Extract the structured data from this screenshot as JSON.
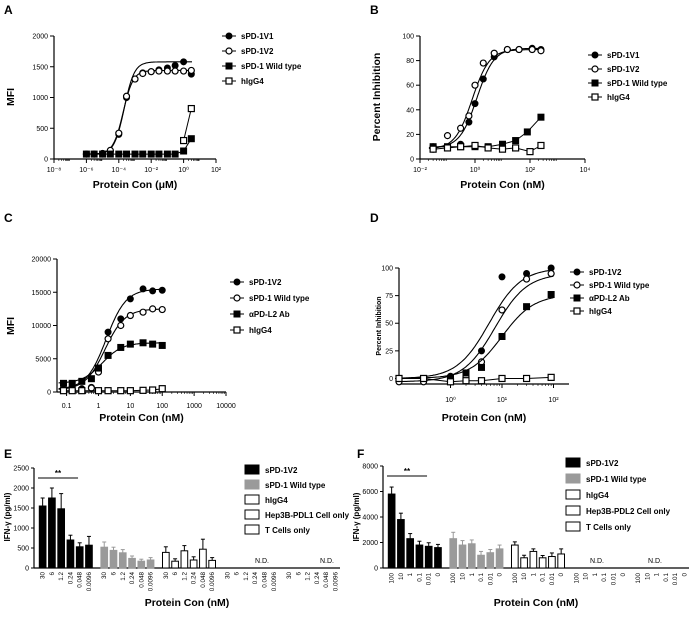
{
  "panels": {
    "A": {
      "letter": "A"
    },
    "B": {
      "letter": "B"
    },
    "C": {
      "letter": "C"
    },
    "D": {
      "letter": "D"
    },
    "E": {
      "letter": "E"
    },
    "F": {
      "letter": "F"
    }
  },
  "chart_data": [
    {
      "id": "A",
      "type": "scatter",
      "xlabel": "Protein Con (μM)",
      "ylabel": "MFI",
      "xscale": "log",
      "xlim": [
        1e-08,
        100
      ],
      "ylim": [
        0,
        2000
      ],
      "xtick_labels": [
        "10⁻⁸",
        "10⁻⁶",
        "10⁻⁴",
        "10⁻²",
        "10⁰",
        "10²"
      ],
      "xticks": [
        1e-08,
        1e-06,
        0.0001,
        0.01,
        1,
        100
      ],
      "yticks": [
        0,
        500,
        1000,
        1500,
        2000
      ],
      "ytick_labels": [
        "0",
        "500",
        "1000",
        "1500",
        "2000"
      ],
      "legend_position": "right",
      "series": [
        {
          "name": "sPD-1V1",
          "marker": "filled-circle",
          "fit": true,
          "x": [
            1e-06,
            3e-06,
            1e-05,
            3e-05,
            0.0001,
            0.0003,
            0.001,
            0.003,
            0.01,
            0.03,
            0.1,
            0.3,
            1,
            3
          ],
          "y": [
            80,
            80,
            80,
            130,
            400,
            1000,
            1300,
            1400,
            1420,
            1450,
            1480,
            1520,
            1580,
            1380
          ]
        },
        {
          "name": "sPD-1V2",
          "marker": "open-circle",
          "fit": true,
          "x": [
            1e-06,
            3e-06,
            1e-05,
            3e-05,
            0.0001,
            0.0003,
            0.001,
            0.003,
            0.01,
            0.03,
            0.1,
            0.3,
            1,
            3
          ],
          "y": [
            80,
            80,
            90,
            140,
            420,
            1020,
            1300,
            1390,
            1420,
            1430,
            1430,
            1430,
            1430,
            1440
          ]
        },
        {
          "name": "sPD-1 Wild type",
          "marker": "filled-square",
          "fit": false,
          "x": [
            1e-06,
            3e-06,
            1e-05,
            3e-05,
            0.0001,
            0.0003,
            0.001,
            0.003,
            0.01,
            0.03,
            0.1,
            0.3,
            1,
            3
          ],
          "y": [
            80,
            80,
            80,
            80,
            80,
            80,
            80,
            80,
            80,
            80,
            80,
            80,
            130,
            330
          ]
        },
        {
          "name": "hIgG4",
          "marker": "open-square",
          "fit": false,
          "x": [
            1,
            3
          ],
          "y": [
            300,
            820
          ]
        }
      ]
    },
    {
      "id": "B",
      "type": "scatter",
      "xlabel": "Protein Con (nM)",
      "ylabel": "Percent Inhibition",
      "xscale": "log",
      "xlim": [
        0.01,
        10000
      ],
      "ylim": [
        0,
        100
      ],
      "xticks": [
        0.01,
        1,
        100,
        10000
      ],
      "xtick_labels": [
        "10⁻²",
        "10⁰",
        "10²",
        "10⁴"
      ],
      "yticks": [
        0,
        20,
        40,
        60,
        80,
        100
      ],
      "ytick_labels": [
        "0",
        "20",
        "40",
        "60",
        "80",
        "100"
      ],
      "legend_position": "right",
      "series": [
        {
          "name": "sPD-1V1",
          "marker": "filled-circle",
          "fit": true,
          "x": [
            0.03,
            0.1,
            0.3,
            0.6,
            1,
            2,
            5,
            15,
            40,
            120,
            250
          ],
          "y": [
            10,
            9,
            12,
            30,
            45,
            65,
            83,
            89,
            89,
            90,
            89
          ]
        },
        {
          "name": "sPD-1V2",
          "marker": "open-circle",
          "fit": true,
          "x": [
            0.03,
            0.1,
            0.3,
            0.6,
            1,
            2,
            5,
            15,
            40,
            120,
            250
          ],
          "y": [
            8,
            19,
            25,
            35,
            60,
            78,
            86,
            89,
            89,
            89,
            88
          ]
        },
        {
          "name": "sPD-1 Wild type",
          "marker": "filled-square",
          "fit": false,
          "x": [
            0.03,
            0.1,
            0.3,
            1,
            3,
            10,
            30,
            80,
            250
          ],
          "y": [
            10,
            10,
            10,
            10,
            10,
            12,
            15,
            22,
            34
          ]
        },
        {
          "name": "hIgG4",
          "marker": "open-square",
          "fit": false,
          "x": [
            0.03,
            0.1,
            0.3,
            1,
            3,
            10,
            30,
            100,
            250
          ],
          "y": [
            8,
            9,
            10,
            11,
            9,
            8,
            9,
            6,
            11
          ]
        }
      ]
    },
    {
      "id": "C",
      "type": "scatter",
      "xlabel": "Protein Con (nM)",
      "ylabel": "MFI",
      "xscale": "log",
      "xlim": [
        0.05,
        10000
      ],
      "ylim": [
        0,
        20000
      ],
      "xticks": [
        0.1,
        1,
        10,
        100,
        1000,
        10000
      ],
      "xtick_labels": [
        "0.1",
        "1",
        "10",
        "100",
        "1000",
        "10000"
      ],
      "yticks": [
        0,
        5000,
        10000,
        15000,
        20000
      ],
      "ytick_labels": [
        "0",
        "5000",
        "10000",
        "15000",
        "20000"
      ],
      "legend_position": "right",
      "series": [
        {
          "name": "sPD-1V2",
          "marker": "filled-circle",
          "fit": true,
          "x": [
            0.08,
            0.15,
            0.3,
            0.6,
            1,
            2,
            5,
            10,
            25,
            50,
            100
          ],
          "y": [
            400,
            400,
            500,
            700,
            3600,
            9000,
            11000,
            14000,
            15500,
            15200,
            15300
          ]
        },
        {
          "name": "sPD-1 Wild type",
          "marker": "open-circle",
          "fit": true,
          "x": [
            0.08,
            0.15,
            0.3,
            0.6,
            1,
            2,
            5,
            10,
            25,
            50,
            100
          ],
          "y": [
            300,
            300,
            300,
            600,
            3000,
            8000,
            10000,
            11500,
            12000,
            12500,
            12400
          ]
        },
        {
          "name": "αPD-L2 Ab",
          "marker": "filled-square",
          "fit": true,
          "x": [
            0.08,
            0.15,
            0.3,
            0.6,
            1,
            2,
            5,
            10,
            25,
            50,
            100
          ],
          "y": [
            1300,
            1300,
            1600,
            2000,
            3600,
            5500,
            6700,
            7200,
            7400,
            7200,
            7000
          ]
        },
        {
          "name": "hIgG4",
          "marker": "open-square",
          "fit": false,
          "x": [
            0.08,
            0.15,
            0.3,
            1,
            2,
            5,
            10,
            25,
            50,
            100
          ],
          "y": [
            200,
            200,
            200,
            200,
            200,
            200,
            200,
            250,
            300,
            500
          ]
        }
      ]
    },
    {
      "id": "D",
      "type": "scatter",
      "xlabel": "Protein Con (nM)",
      "ylabel": "Percent Inhibition",
      "xscale": "log",
      "xlim": [
        0.1,
        200
      ],
      "ylim": [
        -5,
        100
      ],
      "xticks": [
        1,
        10,
        100
      ],
      "xtick_labels": [
        "10⁰",
        "10¹",
        "10²"
      ],
      "yticks": [
        0,
        25,
        50,
        75,
        100
      ],
      "ytick_labels": [
        "0",
        "25",
        "50",
        "75",
        "100"
      ],
      "legend_position": "right",
      "series": [
        {
          "name": "sPD-1V2",
          "marker": "filled-circle",
          "fit": true,
          "x": [
            0.1,
            0.3,
            1,
            2,
            4,
            10,
            30,
            90
          ],
          "y": [
            0,
            0,
            2,
            5,
            25,
            92,
            95,
            100
          ]
        },
        {
          "name": "sPD-1 Wild type",
          "marker": "open-circle",
          "fit": true,
          "x": [
            0.1,
            0.3,
            1,
            2,
            4,
            10,
            30,
            90
          ],
          "y": [
            -3,
            -3,
            -3,
            2,
            15,
            62,
            90,
            95
          ]
        },
        {
          "name": "αPD-L2 Ab",
          "marker": "filled-square",
          "fit": true,
          "x": [
            0.1,
            0.3,
            1,
            2,
            4,
            10,
            30,
            90
          ],
          "y": [
            0,
            0,
            0,
            5,
            10,
            38,
            65,
            76
          ]
        },
        {
          "name": "hIgG4",
          "marker": "open-square",
          "fit": false,
          "x": [
            0.1,
            0.3,
            1,
            2,
            4,
            10,
            30,
            90
          ],
          "y": [
            0,
            0,
            -3,
            -2,
            -2,
            0,
            0,
            1
          ]
        }
      ]
    },
    {
      "id": "E",
      "type": "bar",
      "xlabel": "Protein Con (nM)",
      "ylabel": "IFN-γ (pg/ml)",
      "ylim": [
        0,
        2500
      ],
      "yticks": [
        0,
        500,
        1000,
        1500,
        2000,
        2500
      ],
      "ytick_labels": [
        "0",
        "500",
        "1000",
        "1500",
        "2000",
        "2500"
      ],
      "significance": "**",
      "nd_label": "N.D.",
      "legend_position": "right",
      "groups": [
        {
          "name": "sPD-1V2",
          "style": "black",
          "categories": [
            "30",
            "6",
            "1.2",
            "0.24",
            "0.048",
            "0.0096"
          ],
          "values": [
            1550,
            1750,
            1480,
            700,
            530,
            570
          ],
          "errors": [
            200,
            250,
            380,
            120,
            100,
            220
          ]
        },
        {
          "name": "sPD-1 Wild type",
          "style": "gray",
          "categories": [
            "30",
            "6",
            "1.2",
            "0.24",
            "0.048",
            "0.0096"
          ],
          "values": [
            520,
            440,
            380,
            240,
            170,
            200
          ],
          "errors": [
            130,
            80,
            80,
            60,
            50,
            60
          ]
        },
        {
          "name": "hIgG4",
          "style": "white",
          "categories": [
            "30",
            "6",
            "1.2",
            "0.24",
            "0.048",
            "0.0096"
          ],
          "values": [
            390,
            170,
            430,
            200,
            470,
            190
          ],
          "errors": [
            140,
            60,
            130,
            80,
            250,
            70
          ]
        },
        {
          "name": "Hep3B-PDL1 Cell only",
          "style": "white",
          "categories": [
            "30",
            "6",
            "1.2",
            "0.24",
            "0.048",
            "0.0096"
          ],
          "values": [
            0,
            0,
            0,
            0,
            0,
            0
          ],
          "errors": [
            0,
            0,
            0,
            0,
            0,
            0
          ]
        },
        {
          "name": "T Cells only",
          "style": "white",
          "categories": [
            "30",
            "6",
            "1.2",
            "0.24",
            "0.048",
            "0.0096"
          ],
          "values": [
            0,
            0,
            0,
            0,
            0,
            0
          ],
          "errors": [
            0,
            0,
            0,
            0,
            0,
            0
          ]
        }
      ]
    },
    {
      "id": "F",
      "type": "bar",
      "xlabel": "Protein Con (nM)",
      "ylabel": "IFN-γ (pg/ml)",
      "ylim": [
        0,
        8000
      ],
      "yticks": [
        0,
        2000,
        4000,
        6000,
        8000
      ],
      "ytick_labels": [
        "0",
        "2000",
        "4000",
        "6000",
        "8000"
      ],
      "significance": "**",
      "nd_label": "N.D.",
      "legend_position": "right",
      "groups": [
        {
          "name": "sPD-1V2",
          "style": "black",
          "categories": [
            "100",
            "10",
            "1",
            "0.1",
            "0.01",
            "0"
          ],
          "values": [
            5800,
            3800,
            2300,
            1800,
            1700,
            1600
          ],
          "errors": [
            550,
            500,
            400,
            300,
            280,
            250
          ]
        },
        {
          "name": "sPD-1 Wild type",
          "style": "gray",
          "categories": [
            "100",
            "10",
            "1",
            "0.1",
            "0.01",
            "0"
          ],
          "values": [
            2300,
            1800,
            1900,
            1000,
            1200,
            1500
          ],
          "errors": [
            500,
            350,
            300,
            300,
            250,
            300
          ]
        },
        {
          "name": "hIgG4",
          "style": "white",
          "categories": [
            "100",
            "10",
            "1",
            "0.1",
            "0.01",
            "0"
          ],
          "values": [
            1800,
            800,
            1300,
            800,
            900,
            1100
          ],
          "errors": [
            250,
            200,
            200,
            180,
            280,
            400
          ]
        },
        {
          "name": "Hep3B-PDL2 Cell only",
          "style": "white",
          "categories": [
            "100",
            "10",
            "1",
            "0.1",
            "0.01",
            "0"
          ],
          "values": [
            0,
            0,
            0,
            0,
            0,
            0
          ],
          "errors": [
            0,
            0,
            0,
            0,
            0,
            0
          ]
        },
        {
          "name": "T Cells only",
          "style": "white",
          "categories": [
            "100",
            "10",
            "1",
            "0.1",
            "0.01",
            "0"
          ],
          "values": [
            0,
            0,
            0,
            0,
            0,
            0
          ],
          "errors": [
            0,
            0,
            0,
            0,
            0,
            0
          ]
        }
      ]
    }
  ]
}
